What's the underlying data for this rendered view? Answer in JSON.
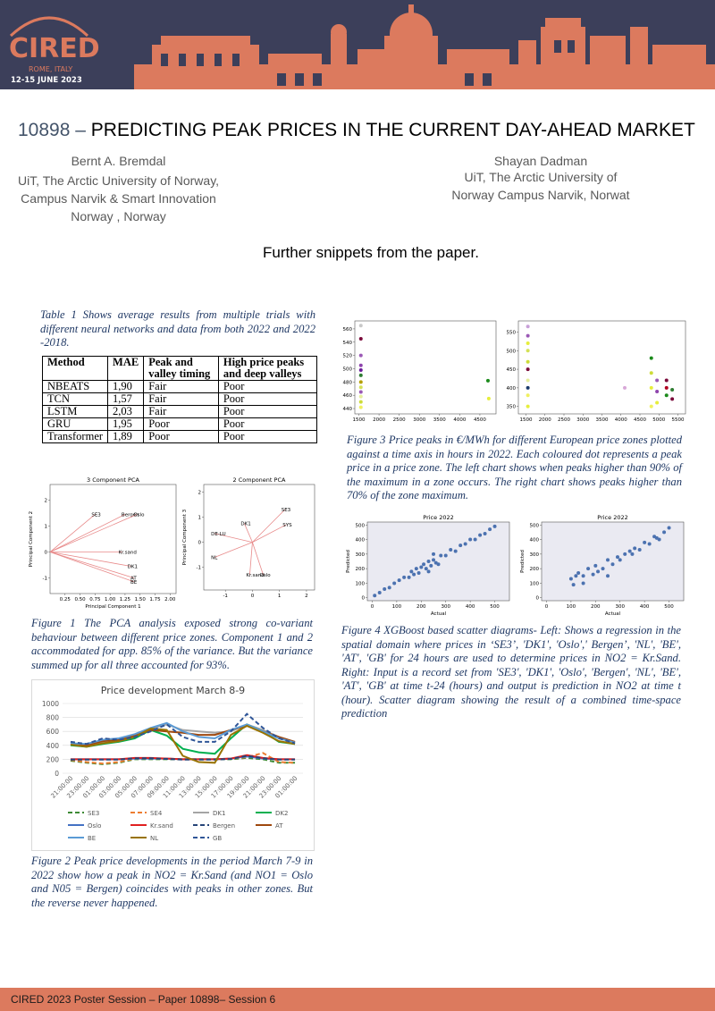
{
  "header": {
    "brand": "CIRED",
    "location": "ROME, ITALY",
    "dates": "12-15 JUNE 2023"
  },
  "title": {
    "number": "10898",
    "dash": "–",
    "text": "PREDICTING PEAK PRICES IN THE CURRENT DAY-AHEAD MARKET"
  },
  "authors": [
    {
      "name": "Bernt A. Bremdal",
      "affiliation": "UiT, The Arctic University of Norway, Campus Narvik  & Smart Innovation Norway , Norway"
    },
    {
      "name": "Shayan Dadman",
      "affiliation": "UiT, The Arctic University of Norway Campus Narvik, Norwat"
    }
  ],
  "subtitle": "Further snippets from the paper.",
  "table": {
    "caption": "Table 1 Shows average results from multiple trials with different neural networks and data from both 2022 and 2022 -2018.",
    "columns": [
      "Method",
      "MAE",
      "Peak and valley timing",
      "High price peaks and deep valleys"
    ],
    "rows": [
      [
        "NBEATS",
        "1,90",
        "Fair",
        "Poor"
      ],
      [
        "TCN",
        "1,57",
        "Fair",
        "Poor"
      ],
      [
        "LSTM",
        "2,03",
        "Fair",
        "Poor"
      ],
      [
        "GRU",
        "1,95",
        "Poor",
        "Poor"
      ],
      [
        "Transformer",
        "1,89",
        "Poor",
        "Poor"
      ]
    ]
  },
  "figure1": {
    "caption": "Figure 1 The PCA analysis exposed strong co-variant behaviour between different price zones. Component 1 and 2 accommodated for app. 85% of the variance. But the variance summed up for all three accounted for 93%.",
    "left": {
      "type": "pca",
      "title": "3 Component PCA",
      "xlabel": "Principal Component 1",
      "ylabel": "Principal Component 2",
      "color": "#e88a8a",
      "xlim": [
        0,
        2.1
      ],
      "ylim": [
        -1.6,
        2.6
      ],
      "xticks": [
        {
          "value": 0.25,
          "label": "0.25"
        },
        {
          "value": 0.5,
          "label": "0.50"
        },
        {
          "value": 0.75,
          "label": "0.75"
        },
        {
          "value": 1,
          "label": "1.00"
        },
        {
          "value": 1.25,
          "label": "1.25"
        },
        {
          "value": 1.5,
          "label": "1.50"
        },
        {
          "value": 1.75,
          "label": "1.75"
        },
        {
          "value": 2,
          "label": "2.00"
        }
      ],
      "yticks": [
        -1,
        0,
        1,
        2
      ],
      "loadings": [
        {
          "label": "SE3",
          "x": 0.75,
          "y": 1.45
        },
        {
          "label": "Bergen",
          "x": 1.25,
          "y": 1.45
        },
        {
          "label": "Oslo",
          "x": 1.45,
          "y": 1.45
        },
        {
          "label": "Kr.sand",
          "x": 1.2,
          "y": 0
        },
        {
          "label": "DK1",
          "x": 1.35,
          "y": -0.55
        },
        {
          "label": "AT",
          "x": 1.4,
          "y": -1.0
        },
        {
          "label": "BE",
          "x": 1.4,
          "y": -1.15
        }
      ]
    },
    "right": {
      "type": "pca",
      "title": "2 Component PCA",
      "ylabel": "Principal Component 3",
      "color": "#e88a8a",
      "xlim": [
        -1.8,
        2.3
      ],
      "ylim": [
        -1.9,
        2.3
      ],
      "xticks": [
        -1,
        0,
        1,
        2
      ],
      "yticks": [
        -1,
        0,
        1,
        2
      ],
      "loadings": [
        {
          "label": "SE3",
          "x": 1.2,
          "y": 1.3
        },
        {
          "label": "SYS",
          "x": 1.25,
          "y": 0.7
        },
        {
          "label": "DK1",
          "x": -0.3,
          "y": 0.75
        },
        {
          "label": "DE-LU",
          "x": -1.4,
          "y": 0.35
        },
        {
          "label": "NL",
          "x": -1.4,
          "y": -0.6
        },
        {
          "label": "Kr.sand",
          "x": -0.1,
          "y": -1.3
        },
        {
          "label": "Oslo",
          "x": 0.4,
          "y": -1.3
        }
      ]
    }
  },
  "figure2": {
    "caption": "Figure 2 Peak price developments in the period March 7-9 in 2022 show how a peak in NO2 = Kr.Sand (and NO1 = Oslo  and N05 = Bergen) coincides with peaks in other zones. But the reverse never happened.",
    "chart": {
      "type": "line",
      "title": "Price development March 8-9",
      "categories": [
        "21:00:00",
        "23:00:00",
        "01:00:00",
        "03:00:00",
        "05:00:00",
        "07:00:00",
        "09:00:00",
        "11:00:00",
        "13:00:00",
        "15:00:00",
        "17:00:00",
        "19:00:00",
        "21:00:00",
        "23:00:00",
        "01:00:00"
      ],
      "ylim": [
        0,
        1000
      ],
      "yticks": [
        0,
        200,
        400,
        600,
        800,
        1000
      ],
      "grid": true,
      "series": [
        {
          "name": "SE3",
          "color": "#3d8a35",
          "dashed": true,
          "values": [
            180,
            150,
            130,
            150,
            200,
            200,
            200,
            200,
            200,
            200,
            200,
            220,
            200,
            150,
            150
          ]
        },
        {
          "name": "SE4",
          "color": "#ed7d31",
          "dashed": true,
          "values": [
            190,
            160,
            140,
            160,
            210,
            210,
            210,
            200,
            200,
            200,
            210,
            230,
            290,
            160,
            150
          ]
        },
        {
          "name": "DK1",
          "color": "#a5a5a5",
          "dashed": false,
          "values": [
            420,
            400,
            450,
            470,
            520,
            640,
            700,
            620,
            600,
            580,
            600,
            700,
            620,
            520,
            450
          ]
        },
        {
          "name": "DK2",
          "color": "#00b050",
          "dashed": false,
          "values": [
            400,
            380,
            420,
            450,
            500,
            620,
            540,
            350,
            300,
            280,
            500,
            700,
            600,
            450,
            420
          ]
        },
        {
          "name": "Oslo",
          "color": "#4472c4",
          "dashed": false,
          "values": [
            200,
            200,
            200,
            200,
            210,
            210,
            210,
            200,
            200,
            200,
            210,
            240,
            210,
            200,
            200
          ]
        },
        {
          "name": "Kr.sand",
          "color": "#e02020",
          "dashed": false,
          "values": [
            200,
            200,
            200,
            200,
            220,
            220,
            210,
            200,
            200,
            200,
            210,
            260,
            220,
            200,
            200
          ]
        },
        {
          "name": "Bergen",
          "color": "#264478",
          "dashed": true,
          "values": [
            195,
            195,
            195,
            195,
            215,
            215,
            205,
            195,
            195,
            195,
            205,
            250,
            215,
            195,
            195
          ]
        },
        {
          "name": "AT",
          "color": "#9e480e",
          "dashed": false,
          "values": [
            420,
            400,
            460,
            480,
            540,
            620,
            600,
            580,
            550,
            550,
            620,
            680,
            600,
            520,
            450
          ]
        },
        {
          "name": "BE",
          "color": "#5b9bd5",
          "dashed": false,
          "values": [
            430,
            420,
            480,
            500,
            560,
            650,
            720,
            600,
            520,
            500,
            620,
            700,
            600,
            500,
            440
          ]
        },
        {
          "name": "NL",
          "color": "#997300",
          "dashed": false,
          "values": [
            410,
            380,
            430,
            460,
            520,
            640,
            620,
            250,
            160,
            150,
            550,
            680,
            580,
            460,
            420
          ]
        },
        {
          "name": "GB",
          "color": "#2f5597",
          "dashed": true,
          "values": [
            450,
            420,
            500,
            480,
            520,
            600,
            700,
            520,
            450,
            450,
            600,
            850,
            650,
            500,
            430
          ]
        }
      ]
    }
  },
  "figure3": {
    "caption": "Figure 3 Price peaks in €/MWh for different European price zones plotted against a time axis in hours in 2022. Each coloured dot represents a peak price in a price zone. The left  chart shows when peaks higher than 90% of the maximum in a zone occurs. The right chart shows peaks higher than 70% of the zone maximum.",
    "left": {
      "type": "scatter",
      "xlim": [
        1400,
        4900
      ],
      "ylim": [
        432,
        572
      ],
      "xticks": [
        1500,
        2000,
        2500,
        3000,
        3500,
        4000,
        4500
      ],
      "yticks": [
        440,
        460,
        480,
        500,
        520,
        540,
        560
      ],
      "x": [
        1550,
        1550,
        1550,
        1550,
        1550,
        1550,
        1550,
        1550,
        1550,
        1550,
        1550,
        1550,
        4700,
        4720
      ],
      "y": [
        565,
        545,
        520,
        505,
        498,
        490,
        480,
        472,
        465,
        458,
        450,
        442,
        482,
        455
      ],
      "colors": [
        "#c8c8c8",
        "#7a0a3a",
        "#9b59b6",
        "#8e44ad",
        "#6a1b9a",
        "#2e7d32",
        "#b5a000",
        "#d4e157",
        "#9b59b6",
        "#e6ee9c",
        "#cddc39",
        "#f0f060",
        "#1b8a1b",
        "#e6ee3c"
      ]
    },
    "right": {
      "type": "scatter",
      "xlim": [
        1300,
        5700
      ],
      "ylim": [
        330,
        580
      ],
      "xticks": [
        1500,
        2000,
        2500,
        3000,
        3500,
        4000,
        4500,
        5000,
        5500
      ],
      "yticks": [
        350,
        400,
        450,
        500,
        550
      ],
      "x": [
        1550,
        1550,
        1550,
        1550,
        1550,
        1550,
        1550,
        1550,
        1550,
        1550,
        4100,
        4800,
        4800,
        4800,
        4800,
        4950,
        4950,
        4950,
        5200,
        5200,
        5200,
        5350,
        5350
      ],
      "y": [
        565,
        540,
        520,
        500,
        470,
        450,
        420,
        400,
        380,
        350,
        400,
        480,
        440,
        400,
        350,
        420,
        390,
        360,
        420,
        400,
        380,
        395,
        370
      ],
      "colors": [
        "#c8a0d8",
        "#9b59b6",
        "#e6ee3c",
        "#d4e157",
        "#cddc39",
        "#7a0a3a",
        "#e6ee9c",
        "#1b3a6b",
        "#f0f060",
        "#e6ee3c",
        "#d8a8d8",
        "#1b8a1b",
        "#cddc39",
        "#e6ee3c",
        "#f0f060",
        "#9b59b6",
        "#8e44ad",
        "#e6ee3c",
        "#7a0a3a",
        "#b00020",
        "#1b8a1b",
        "#2e7d32",
        "#7a0a3a"
      ]
    }
  },
  "figure4": {
    "caption": "Figure 4 XGBoost based scatter diagrams- Left: Shows a regression in the spatial domain where prices in  ‘SE3’, 'DK1', 'Oslo',' Bergen’, 'NL', 'BE', 'AT', 'GB' for 24 hours are used to determine prices in NO2 = Kr.Sand. Right: Input is a record set from 'SE3', 'DK1', 'Oslo', 'Bergen', 'NL', 'BE', 'AT', 'GB' at time t-24 (hours) and output is prediction in NO2 at time t (hour). Scatter diagram showing the result of a combined time-space prediction",
    "left": {
      "type": "scatter",
      "title": "Price 2022",
      "xlabel": "Actual",
      "ylabel": "Predicted",
      "color": "#4c72b0",
      "xlim": [
        -20,
        560
      ],
      "ylim": [
        -20,
        520
      ],
      "xticks": [
        0,
        100,
        200,
        300,
        400,
        500
      ],
      "yticks": [
        0,
        100,
        200,
        300,
        400,
        500
      ],
      "x": [
        10,
        30,
        50,
        70,
        90,
        110,
        130,
        150,
        160,
        170,
        180,
        190,
        200,
        210,
        220,
        230,
        240,
        250,
        260,
        280,
        300,
        320,
        340,
        360,
        380,
        400,
        420,
        440,
        460,
        480,
        500,
        230,
        250,
        270
      ],
      "y": [
        15,
        35,
        60,
        70,
        100,
        120,
        140,
        140,
        180,
        160,
        200,
        170,
        210,
        230,
        200,
        250,
        220,
        260,
        240,
        290,
        290,
        330,
        320,
        360,
        370,
        400,
        400,
        430,
        440,
        470,
        490,
        180,
        300,
        230
      ]
    },
    "right": {
      "type": "scatter",
      "title": "Price 2022",
      "xlabel": "Actual",
      "ylabel": "Predicted",
      "color": "#4c72b0",
      "xlim": [
        -20,
        560
      ],
      "ylim": [
        -20,
        520
      ],
      "xticks": [
        0,
        100,
        200,
        300,
        400,
        500
      ],
      "yticks": [
        0,
        100,
        200,
        300,
        400,
        500
      ],
      "x": [
        100,
        110,
        120,
        130,
        150,
        170,
        190,
        200,
        210,
        230,
        250,
        270,
        290,
        300,
        320,
        340,
        360,
        380,
        400,
        420,
        440,
        460,
        480,
        500,
        150,
        250,
        350,
        450
      ],
      "y": [
        130,
        90,
        150,
        170,
        150,
        200,
        160,
        220,
        180,
        200,
        260,
        230,
        280,
        260,
        300,
        320,
        340,
        330,
        380,
        370,
        420,
        400,
        450,
        480,
        100,
        150,
        300,
        410
      ]
    }
  },
  "footer": "CIRED 2023 Poster Session – Paper 10898– Session 6"
}
